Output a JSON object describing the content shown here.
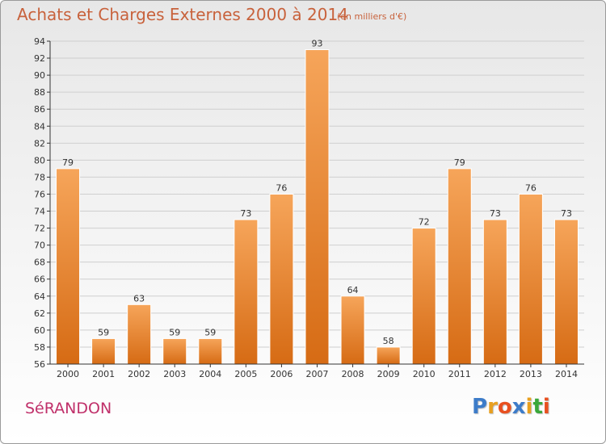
{
  "header": {
    "title": "Achats et Charges Externes 2000 à 2014",
    "subtitle": "(en milliers d'€)"
  },
  "footer": {
    "place_name": "SéRANDON",
    "brand": "Proxiti",
    "brand_letter_colors": [
      "#3d7cc9",
      "#e8a020",
      "#e85020",
      "#3d7cc9",
      "#e8a020",
      "#3aa83a",
      "#e85020"
    ]
  },
  "colors": {
    "bar_top": "#f6a55a",
    "bar_bottom": "#d66b14",
    "bar_edge": "#ffffff",
    "axis": "#333333",
    "grid": "#cfcfcf",
    "text": "#333333"
  },
  "chart_data": {
    "type": "bar",
    "categories": [
      "2000",
      "2001",
      "2002",
      "2003",
      "2004",
      "2005",
      "2006",
      "2007",
      "2008",
      "2009",
      "2010",
      "2011",
      "2012",
      "2013",
      "2014"
    ],
    "values": [
      79,
      59,
      63,
      59,
      59,
      73,
      76,
      93,
      64,
      58,
      72,
      79,
      73,
      76,
      73
    ],
    "title": "Achats et Charges Externes 2000 à 2014",
    "subtitle": "(en milliers d'€)",
    "xlabel": "",
    "ylabel": "",
    "ylim": [
      56,
      94
    ],
    "yticks": [
      56,
      58,
      60,
      62,
      64,
      66,
      68,
      70,
      72,
      74,
      76,
      78,
      80,
      82,
      84,
      86,
      88,
      90,
      92,
      94
    ],
    "grid": true,
    "legend": "none"
  }
}
